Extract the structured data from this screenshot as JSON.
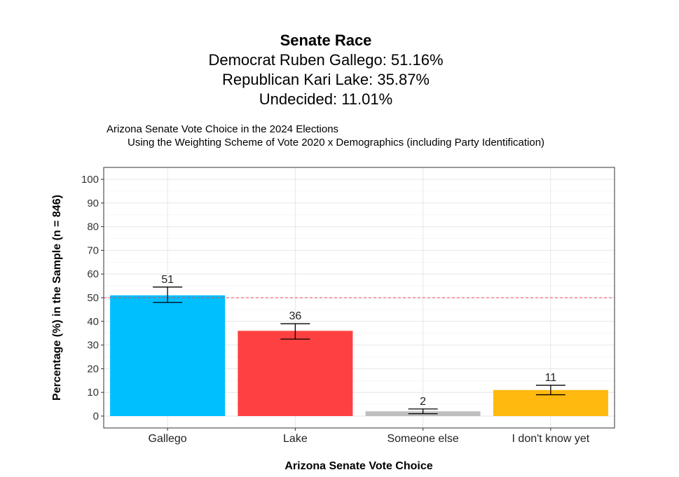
{
  "header": {
    "title": "Senate Race",
    "line1": "Democrat Ruben Gallego: 51.16%",
    "line2": "Republican Kari Lake: 35.87%",
    "line3": "Undecided: 11.01%"
  },
  "chart_data": {
    "type": "bar",
    "title": "Arizona Senate Vote Choice in the 2024 Elections",
    "subtitle": "Using the Weighting Scheme of Vote 2020 x Demographics (including Party Identification)",
    "xlabel": "Arizona Senate Vote Choice",
    "ylabel": "Percentage (%) in the Sample (n = 846)",
    "categories": [
      "Gallego",
      "Lake",
      "Someone else",
      "I don't know yet"
    ],
    "values": [
      51,
      36,
      2,
      11
    ],
    "value_labels": [
      "51",
      "36",
      "2",
      "11"
    ],
    "error_low": [
      48,
      32.5,
      1,
      9
    ],
    "error_high": [
      54.5,
      39,
      3,
      13
    ],
    "colors": [
      "#00bfff",
      "#ff4040",
      "#bebebe",
      "#ffb90f"
    ],
    "ylim": [
      0,
      100
    ],
    "yticks": [
      0,
      10,
      20,
      30,
      40,
      50,
      60,
      70,
      80,
      90,
      100
    ],
    "reference_line": {
      "y": 50,
      "color": "#e8474b",
      "style": "dashed"
    },
    "grid": true,
    "legend": "none"
  }
}
